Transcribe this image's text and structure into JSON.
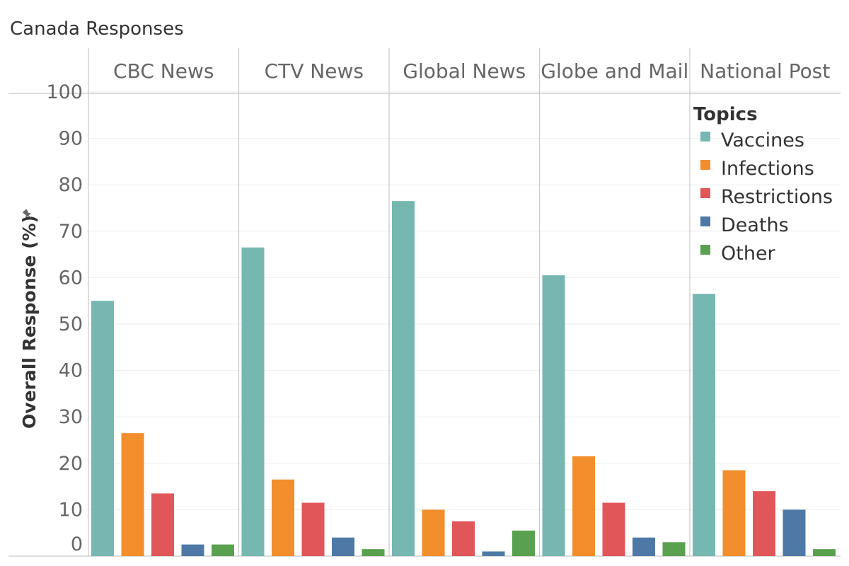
{
  "chart_data": {
    "type": "bar",
    "title": "Canada Responses",
    "ylabel": "Overall Response (%)",
    "xlabel": "",
    "ylim": [
      0,
      100
    ],
    "yticks": [
      0,
      10,
      20,
      30,
      40,
      50,
      60,
      70,
      80,
      90,
      100
    ],
    "grid": true,
    "legend": {
      "title": "Topics",
      "placement": "top-right"
    },
    "categories": [
      "CBC News",
      "CTV News",
      "Global News",
      "Globe and Mail",
      "National Post"
    ],
    "series": [
      {
        "name": "Vaccines",
        "color": "#76b7b2",
        "values": [
          55,
          66.5,
          76.5,
          60.5,
          56.5
        ]
      },
      {
        "name": "Infections",
        "color": "#f28e2b",
        "values": [
          26.5,
          16.5,
          10,
          21.5,
          18.5
        ]
      },
      {
        "name": "Restrictions",
        "color": "#e15759",
        "values": [
          13.5,
          11.5,
          7.5,
          11.5,
          14
        ]
      },
      {
        "name": "Deaths",
        "color": "#4e79a7",
        "values": [
          2.5,
          4,
          1,
          4,
          10
        ]
      },
      {
        "name": "Other",
        "color": "#59a14f",
        "values": [
          2.5,
          1.5,
          5.5,
          3,
          1.5
        ]
      }
    ]
  }
}
